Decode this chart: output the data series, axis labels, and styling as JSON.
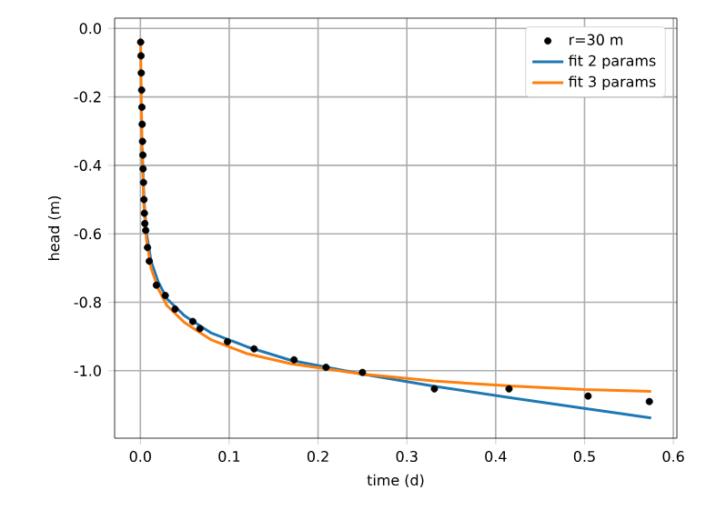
{
  "chart_data": {
    "type": "line",
    "xlabel": "time (d)",
    "ylabel": "head (m)",
    "xlim": [
      -0.029,
      0.604
    ],
    "ylim": [
      -1.197,
      0.03
    ],
    "xticks": [
      {
        "value": 0,
        "label": "0.0"
      },
      0.1,
      0.2,
      0.3,
      0.4,
      0.5,
      0.6
    ],
    "yticks": [
      {
        "value": -1,
        "label": "-1.0"
      },
      -0.8,
      -0.6,
      -0.4,
      -0.2,
      {
        "value": 0,
        "label": "0.0"
      }
    ],
    "grid": true,
    "legend": "top right",
    "series": [
      {
        "name": "r=30 m",
        "type": "scatter",
        "marker": "circle",
        "color": "#000000",
        "x": [
          0.0003,
          0.0007,
          0.001,
          0.0014,
          0.0017,
          0.002,
          0.0024,
          0.0028,
          0.003,
          0.0035,
          0.004,
          0.0045,
          0.005,
          0.006,
          0.008,
          0.01,
          0.018,
          0.028,
          0.039,
          0.059,
          0.067,
          0.098,
          0.128,
          0.173,
          0.209,
          0.25,
          0.331,
          0.415,
          0.504,
          0.573
        ],
        "values": [
          -0.04,
          -0.08,
          -0.13,
          -0.18,
          -0.23,
          -0.28,
          -0.33,
          -0.37,
          -0.41,
          -0.45,
          -0.5,
          -0.54,
          -0.57,
          -0.59,
          -0.64,
          -0.68,
          -0.75,
          -0.78,
          -0.82,
          -0.856,
          -0.877,
          -0.915,
          -0.936,
          -0.968,
          -0.99,
          -1.005,
          -1.053,
          -1.053,
          -1.074,
          -1.09
        ]
      },
      {
        "name": "fit 2 params",
        "color": "#1f77b4",
        "x": [
          0.002,
          0.004,
          0.007,
          0.012,
          0.02,
          0.03,
          0.05,
          0.08,
          0.12,
          0.17,
          0.25,
          0.33,
          0.42,
          0.5,
          0.575
        ],
        "values": [
          -0.35,
          -0.5,
          -0.6,
          -0.68,
          -0.74,
          -0.79,
          -0.84,
          -0.89,
          -0.93,
          -0.97,
          -1.01,
          -1.045,
          -1.08,
          -1.11,
          -1.138
        ]
      },
      {
        "name": "fit 3 params",
        "color": "#ff7f0e",
        "x": [
          0.0002,
          0.001,
          0.002,
          0.004,
          0.007,
          0.012,
          0.02,
          0.03,
          0.05,
          0.08,
          0.12,
          0.17,
          0.25,
          0.33,
          0.42,
          0.5,
          0.575
        ],
        "values": [
          -0.03,
          -0.2,
          -0.36,
          -0.52,
          -0.62,
          -0.7,
          -0.76,
          -0.81,
          -0.86,
          -0.91,
          -0.95,
          -0.98,
          -1.01,
          -1.03,
          -1.045,
          -1.055,
          -1.06
        ]
      }
    ]
  }
}
